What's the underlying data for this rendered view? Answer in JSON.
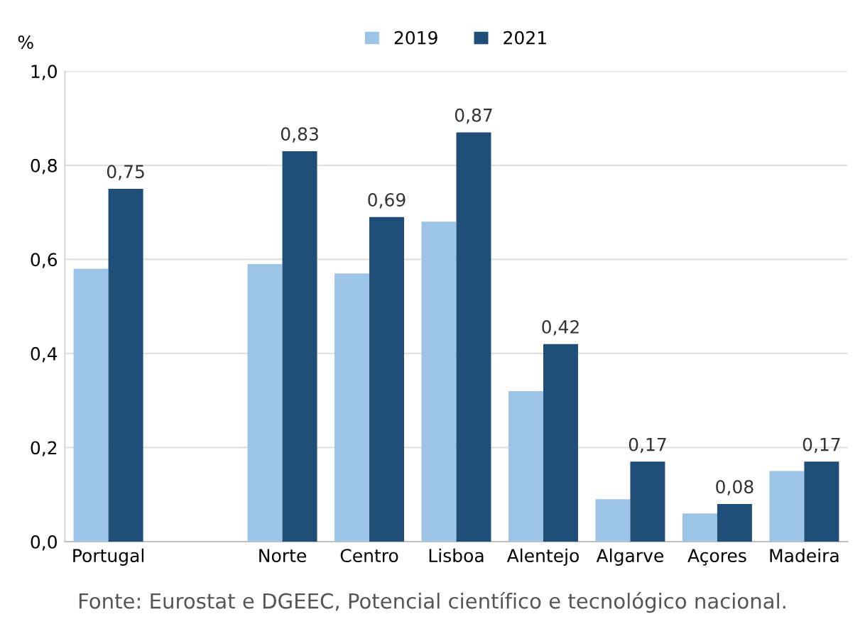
{
  "chart_data": {
    "type": "bar",
    "ylabel": "%",
    "categories": [
      "Portugal",
      null,
      "Norte",
      "Centro",
      "Lisboa",
      "Alentejo",
      "Algarve",
      "Açores",
      "Madeira"
    ],
    "series": [
      {
        "name": "2019",
        "color": "#9dc3e6",
        "values": [
          0.58,
          null,
          0.59,
          0.57,
          0.68,
          0.32,
          0.09,
          0.06,
          0.15
        ]
      },
      {
        "name": "2021",
        "color": "#1f4e79",
        "values": [
          0.75,
          null,
          0.83,
          0.69,
          0.87,
          0.42,
          0.17,
          0.08,
          0.17
        ],
        "value_labels": [
          "0,75",
          null,
          "0,83",
          "0,69",
          "0,87",
          "0,42",
          "0,17",
          "0,08",
          "0,17"
        ]
      }
    ],
    "ylim": [
      0,
      1.0
    ],
    "yticks": [
      {
        "value": 0,
        "label": "0,0"
      },
      {
        "value": 0.2,
        "label": "0,2"
      },
      {
        "value": 0.4,
        "label": "0,4"
      },
      {
        "value": 0.6,
        "label": "0,6"
      },
      {
        "value": 0.8,
        "label": "0,8"
      },
      {
        "value": 1.0,
        "label": "1,0"
      }
    ],
    "grid": "y",
    "legend": "top",
    "annotations": [
      "Fonte: Eurostat e DGEEC, Potencial científico e tecnológico nacional."
    ]
  }
}
